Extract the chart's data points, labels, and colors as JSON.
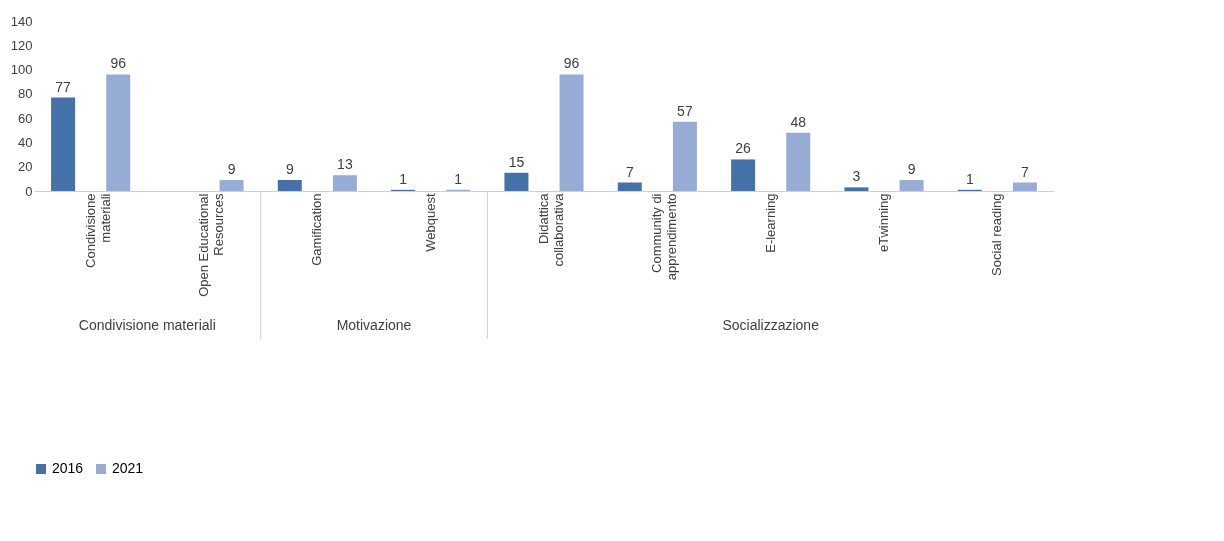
{
  "chart_data": {
    "type": "bar",
    "categories": [
      "Condivisione materiali",
      "Open Educational Resources",
      "Gamification",
      "Webquest",
      "Didattica collaborativa",
      "Community di apprendimento",
      "E-learning",
      "eTwinning",
      "Social reading"
    ],
    "series": [
      {
        "name": "2016",
        "color": "#4472a8",
        "values": [
          77,
          null,
          9,
          1,
          15,
          7,
          26,
          3,
          1
        ]
      },
      {
        "name": "2021",
        "color": "#97acd5",
        "values": [
          96,
          9,
          13,
          1,
          96,
          57,
          48,
          9,
          7
        ]
      }
    ],
    "ylim": [
      0,
      140
    ],
    "yticks": [
      0,
      20,
      40,
      60,
      80,
      100,
      120,
      140
    ],
    "grid": false,
    "legend": "bottom",
    "data_labels": true,
    "annotations": [
      "Condivisione materiali",
      "Motivazione",
      "Socializzazione"
    ]
  }
}
